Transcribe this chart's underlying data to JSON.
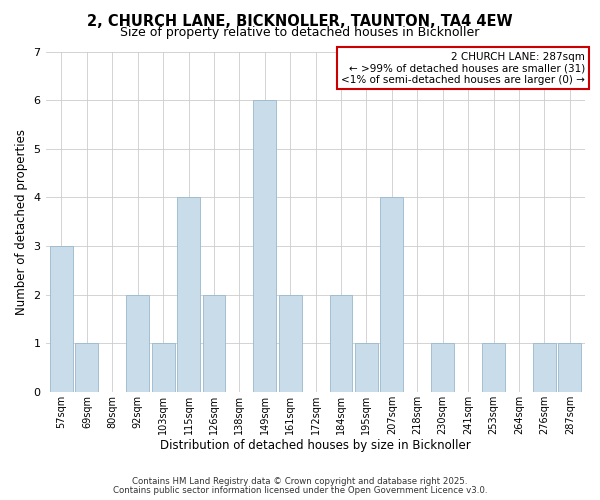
{
  "title": "2, CHURCH LANE, BICKNOLLER, TAUNTON, TA4 4EW",
  "subtitle": "Size of property relative to detached houses in Bicknoller",
  "xlabel": "Distribution of detached houses by size in Bicknoller",
  "ylabel": "Number of detached properties",
  "bar_labels": [
    "57sqm",
    "69sqm",
    "80sqm",
    "92sqm",
    "103sqm",
    "115sqm",
    "126sqm",
    "138sqm",
    "149sqm",
    "161sqm",
    "172sqm",
    "184sqm",
    "195sqm",
    "207sqm",
    "218sqm",
    "230sqm",
    "241sqm",
    "253sqm",
    "264sqm",
    "276sqm",
    "287sqm"
  ],
  "bar_values": [
    3,
    1,
    0,
    2,
    1,
    4,
    2,
    0,
    6,
    2,
    0,
    2,
    1,
    4,
    0,
    1,
    0,
    1,
    0,
    1,
    1
  ],
  "bar_color": "#c9dcea",
  "bar_edge_color": "#9ab8cc",
  "highlight_bar_index": 20,
  "highlight_bar_edge_color": "#cc0000",
  "box_edge_color": "#cc0000",
  "ylim": [
    0,
    7
  ],
  "yticks": [
    0,
    1,
    2,
    3,
    4,
    5,
    6,
    7
  ],
  "annotation_title": "2 CHURCH LANE: 287sqm",
  "annotation_line1": "← >99% of detached houses are smaller (31)",
  "annotation_line2": "<1% of semi-detached houses are larger (0) →",
  "footer1": "Contains HM Land Registry data © Crown copyright and database right 2025.",
  "footer2": "Contains public sector information licensed under the Open Government Licence v3.0.",
  "bg_color": "#ffffff",
  "grid_color": "#cccccc"
}
